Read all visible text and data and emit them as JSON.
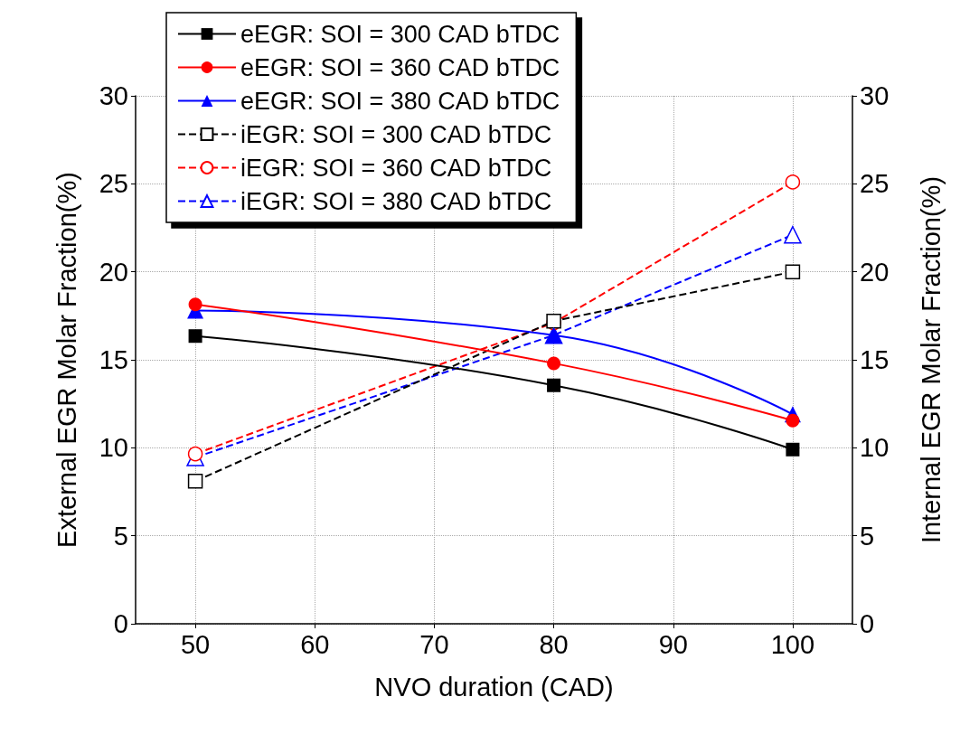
{
  "chart_data": {
    "type": "line",
    "xlabel": "NVO duration (CAD)",
    "ylabel": "External EGR Molar Fraction(%)",
    "y2label": "Internal EGR Molar Fraction(%)",
    "x": [
      50,
      80,
      100
    ],
    "xlim": [
      45,
      105
    ],
    "xticks": [
      50,
      60,
      70,
      80,
      90,
      100
    ],
    "ylim": [
      0,
      30
    ],
    "yticks": [
      0,
      5,
      10,
      15,
      20,
      25,
      30
    ],
    "y2lim": [
      0,
      30
    ],
    "y2ticks": [
      0,
      5,
      10,
      15,
      20,
      25,
      30
    ],
    "grid": true,
    "legend": "top",
    "series": [
      {
        "name": "eEGR: SOI = 300 CAD bTDC",
        "color": "#000000",
        "values": [
          16.35,
          13.55,
          9.9
        ],
        "marker": "square",
        "line_style": "solid"
      },
      {
        "name": "eEGR: SOI = 360 CAD bTDC",
        "color": "#ff0000",
        "values": [
          18.15,
          14.8,
          11.55
        ],
        "marker": "circle",
        "line_style": "solid"
      },
      {
        "name": "eEGR: SOI = 380 CAD bTDC",
        "color": "#0000ff",
        "values": [
          17.8,
          16.4,
          11.9
        ],
        "marker": "triangle",
        "line_style": "solid"
      },
      {
        "name": "iEGR: SOI = 300 CAD bTDC",
        "color": "#000000",
        "values": [
          8.1,
          17.2,
          20.0
        ],
        "marker": "square",
        "line_style": "dashed",
        "axis": "y2"
      },
      {
        "name": "iEGR: SOI = 360 CAD bTDC",
        "color": "#ff0000",
        "values": [
          9.65,
          17.1,
          25.1
        ],
        "marker": "circle",
        "line_style": "dashed",
        "axis": "y2"
      },
      {
        "name": "iEGR: SOI = 380 CAD bTDC",
        "color": "#0000ff",
        "values": [
          9.45,
          16.4,
          22.1
        ],
        "marker": "triangle",
        "line_style": "dashed",
        "axis": "y2"
      }
    ]
  }
}
